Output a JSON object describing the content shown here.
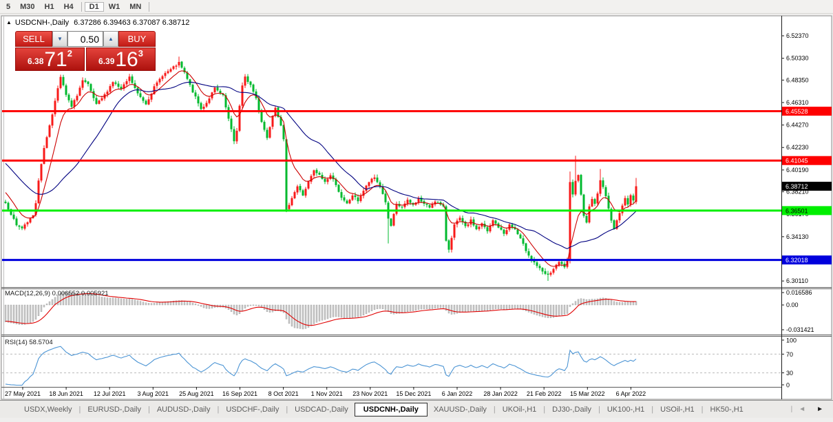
{
  "toolbar": {
    "timeframes": [
      "5",
      "M30",
      "H1",
      "H4",
      "D1",
      "W1",
      "MN"
    ],
    "active": "D1"
  },
  "window": {
    "collapse_icon": "▲",
    "title": "USDCNH-,Daily",
    "ohlc_text": "6.37286 6.39463 6.37087 6.38712"
  },
  "trade_panel": {
    "sell_label": "SELL",
    "buy_label": "BUY",
    "volume": "0.50",
    "sell_small": "6.38",
    "sell_big": "71",
    "sell_sup": "2",
    "buy_small": "6.39",
    "buy_big": "16",
    "buy_sup": "3"
  },
  "tabs": {
    "items": [
      "USDX,Weekly",
      "EURUSD-,Daily",
      "AUDUSD-,Daily",
      "USDCHF-,Daily",
      "USDCAD-,Daily",
      "USDCNH-,Daily",
      "XAUUSD-,Daily",
      "UKOil-,H1",
      "DJ30-,Daily",
      "UK100-,H1",
      "USOil-,H1",
      "HK50-,H1"
    ],
    "active": "USDCNH-,Daily",
    "scroll_left": "◄",
    "scroll_right": "►"
  },
  "chart_data": {
    "type": "candlestick",
    "symbol": "USDCNH-",
    "timeframe": "Daily",
    "last_ohlc": {
      "open": 6.37286,
      "high": 6.39463,
      "low": 6.37087,
      "close": 6.38712
    },
    "y_axis": {
      "ticks": [
        "6.52370",
        "6.50330",
        "6.48350",
        "6.46310",
        "6.44270",
        "6.42230",
        "6.40190",
        "6.38210",
        "6.36170",
        "6.34130",
        "6.32090",
        "6.30110"
      ]
    },
    "x_axis": {
      "labels": [
        "27 May 2021",
        "18 Jun 2021",
        "12 Jul 2021",
        "3 Aug 2021",
        "25 Aug 2021",
        "16 Sep 2021",
        "8 Oct 2021",
        "1 Nov 2021",
        "23 Nov 2021",
        "15 Dec 2021",
        "6 Jan 2022",
        "28 Jan 2022",
        "21 Feb 2022",
        "15 Mar 2022",
        "6 Apr 2022"
      ]
    },
    "hlines": [
      {
        "price": 6.45528,
        "label": "6.45528",
        "color": "#fe0000",
        "text": "#ffffff"
      },
      {
        "price": 6.41045,
        "label": "6.41045",
        "color": "#fe0000",
        "text": "#ffffff"
      },
      {
        "price": 6.36501,
        "label": "6.36501",
        "color": "#00ef00",
        "text": "#000000"
      },
      {
        "price": 6.32018,
        "label": "6.32018",
        "color": "#0000dd",
        "text": "#ffffff"
      }
    ],
    "current_price": {
      "value": 6.38712,
      "label": "6.38712",
      "bg": "#000000",
      "text": "#ffffff"
    },
    "prehistory": {
      "bars": 40,
      "from": 6.472,
      "to": 6.374
    },
    "price_path": [
      [
        0,
        6.372
      ],
      [
        2,
        6.362
      ],
      [
        4,
        6.352
      ],
      [
        6,
        6.349
      ],
      [
        8,
        6.354
      ],
      [
        10,
        6.361
      ],
      [
        11,
        6.372
      ],
      [
        12,
        6.393
      ],
      [
        13,
        6.408
      ],
      [
        14,
        6.421
      ],
      [
        15,
        6.432
      ],
      [
        16,
        6.443
      ],
      [
        17,
        6.452
      ],
      [
        18,
        6.465
      ],
      [
        19,
        6.477
      ],
      [
        20,
        6.486
      ],
      [
        22,
        6.47
      ],
      [
        24,
        6.459
      ],
      [
        26,
        6.47
      ],
      [
        28,
        6.483
      ],
      [
        30,
        6.479
      ],
      [
        33,
        6.461
      ],
      [
        36,
        6.47
      ],
      [
        39,
        6.482
      ],
      [
        42,
        6.475
      ],
      [
        45,
        6.486
      ],
      [
        48,
        6.471
      ],
      [
        51,
        6.462
      ],
      [
        54,
        6.477
      ],
      [
        57,
        6.488
      ],
      [
        60,
        6.493
      ],
      [
        63,
        6.499
      ],
      [
        65,
        6.49
      ],
      [
        68,
        6.473
      ],
      [
        71,
        6.457
      ],
      [
        73,
        6.463
      ],
      [
        76,
        6.476
      ],
      [
        79,
        6.469
      ],
      [
        81,
        6.448
      ],
      [
        83,
        6.428
      ],
      [
        84,
        6.438
      ],
      [
        85,
        6.46
      ],
      [
        86,
        6.478
      ],
      [
        87,
        6.486
      ],
      [
        89,
        6.479
      ],
      [
        91,
        6.467
      ],
      [
        93,
        6.446
      ],
      [
        95,
        6.431
      ],
      [
        97,
        6.452
      ],
      [
        98,
        6.459
      ],
      [
        100,
        6.443
      ],
      [
        101,
        6.429
      ],
      [
        102,
        6.365
      ],
      [
        104,
        6.377
      ],
      [
        106,
        6.387
      ],
      [
        108,
        6.379
      ],
      [
        110,
        6.391
      ],
      [
        112,
        6.401
      ],
      [
        114,
        6.397
      ],
      [
        116,
        6.391
      ],
      [
        118,
        6.397
      ],
      [
        120,
        6.389
      ],
      [
        122,
        6.376
      ],
      [
        124,
        6.371
      ],
      [
        126,
        6.379
      ],
      [
        128,
        6.374
      ],
      [
        130,
        6.383
      ],
      [
        132,
        6.391
      ],
      [
        134,
        6.395
      ],
      [
        136,
        6.387
      ],
      [
        138,
        6.373
      ],
      [
        139,
        6.357
      ],
      [
        140,
        6.351
      ],
      [
        141,
        6.361
      ],
      [
        142,
        6.37
      ],
      [
        144,
        6.368
      ],
      [
        146,
        6.374
      ],
      [
        148,
        6.37
      ],
      [
        150,
        6.376
      ],
      [
        152,
        6.371
      ],
      [
        154,
        6.368
      ],
      [
        156,
        6.374
      ],
      [
        158,
        6.37
      ],
      [
        159,
        6.368
      ],
      [
        160,
        6.338
      ],
      [
        161,
        6.33
      ],
      [
        162,
        6.341
      ],
      [
        163,
        6.352
      ],
      [
        165,
        6.358
      ],
      [
        167,
        6.35
      ],
      [
        169,
        6.356
      ],
      [
        171,
        6.348
      ],
      [
        173,
        6.353
      ],
      [
        175,
        6.346
      ],
      [
        177,
        6.356
      ],
      [
        179,
        6.35
      ],
      [
        181,
        6.344
      ],
      [
        183,
        6.352
      ],
      [
        185,
        6.348
      ],
      [
        187,
        6.339
      ],
      [
        189,
        6.329
      ],
      [
        191,
        6.321
      ],
      [
        193,
        6.315
      ],
      [
        195,
        6.309
      ],
      [
        197,
        6.306
      ],
      [
        199,
        6.312
      ],
      [
        201,
        6.318
      ],
      [
        203,
        6.314
      ],
      [
        204,
        6.319
      ],
      [
        205,
        6.39
      ],
      [
        206,
        6.379
      ],
      [
        207,
        6.393
      ],
      [
        208,
        6.398
      ],
      [
        209,
        6.379
      ],
      [
        210,
        6.361
      ],
      [
        211,
        6.355
      ],
      [
        212,
        6.368
      ],
      [
        213,
        6.376
      ],
      [
        214,
        6.371
      ],
      [
        215,
        6.381
      ],
      [
        216,
        6.392
      ],
      [
        217,
        6.386
      ],
      [
        218,
        6.379
      ],
      [
        219,
        6.367
      ],
      [
        220,
        6.355
      ],
      [
        221,
        6.349
      ],
      [
        222,
        6.357
      ],
      [
        223,
        6.363
      ],
      [
        224,
        6.369
      ],
      [
        225,
        6.376
      ],
      [
        226,
        6.371
      ],
      [
        227,
        6.379
      ],
      [
        228,
        6.375
      ],
      [
        229,
        6.38712
      ]
    ],
    "wick_spikes": [
      {
        "i": 63,
        "high": 6.5048
      },
      {
        "i": 139,
        "low": 6.3352
      },
      {
        "i": 161,
        "low": 6.3268
      },
      {
        "i": 197,
        "low": 6.3012
      },
      {
        "i": 205,
        "high": 6.4005
      },
      {
        "i": 207,
        "high": 6.4148
      },
      {
        "i": 216,
        "high": 6.4028
      }
    ],
    "indicators": {
      "ma_fast": {
        "type": "ema",
        "period": 9,
        "color": "#cc0000"
      },
      "ma_slow": {
        "type": "sma",
        "period": 30,
        "color": "#000080"
      },
      "macd": {
        "label": "MACD(12,26,9)",
        "current": "0.006552 0.005921",
        "fast": 12,
        "slow": 26,
        "signal": 9,
        "axis_labels": [
          "0.016586",
          "0.00",
          "-0.031421"
        ],
        "hist_color": "#c8c8c8",
        "signal_color": "#e00000"
      },
      "rsi": {
        "label": "RSI(14)",
        "current": "58.5704",
        "period": 14,
        "axis_labels": [
          "100",
          "70",
          "30",
          "0"
        ],
        "levels": [
          70,
          30
        ],
        "color": "#4b94d4"
      }
    },
    "colors": {
      "up": "#f81a19",
      "down": "#00b92e",
      "background": "#ffffff"
    }
  }
}
